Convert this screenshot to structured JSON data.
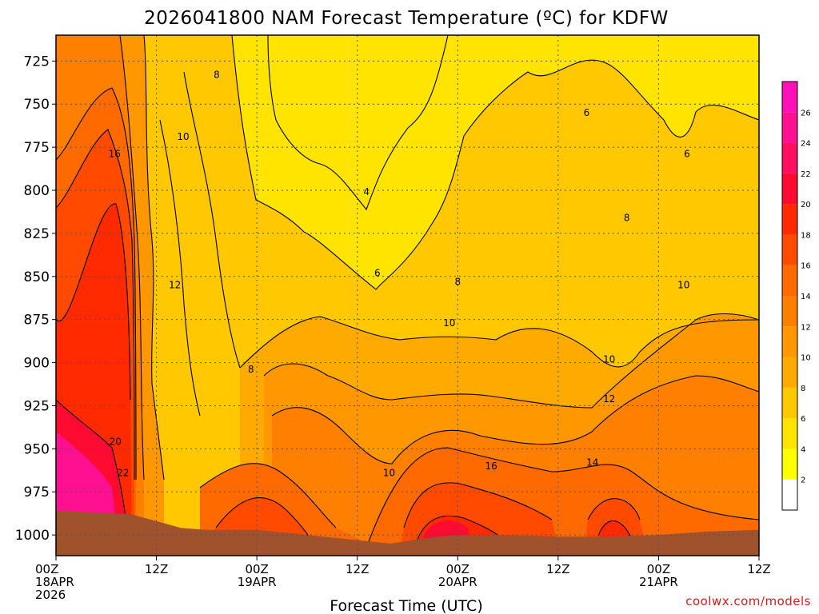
{
  "chart_data": {
    "type": "heatmap",
    "title": "2026041800 NAM Forecast Temperature (ºC) for KDFW",
    "xlabel": "Forecast Time (UTC)",
    "ylabel": "",
    "x_ticks": [
      {
        "t": 0,
        "line1": "00Z",
        "line2": "18APR",
        "line3": "2026"
      },
      {
        "t": 12,
        "line1": "12Z",
        "line2": "",
        "line3": ""
      },
      {
        "t": 24,
        "line1": "00Z",
        "line2": "19APR",
        "line3": ""
      },
      {
        "t": 36,
        "line1": "12Z",
        "line2": "",
        "line3": ""
      },
      {
        "t": 48,
        "line1": "00Z",
        "line2": "20APR",
        "line3": ""
      },
      {
        "t": 60,
        "line1": "12Z",
        "line2": "",
        "line3": ""
      },
      {
        "t": 72,
        "line1": "00Z",
        "line2": "21APR",
        "line3": ""
      },
      {
        "t": 84,
        "line1": "12Z",
        "line2": "",
        "line3": ""
      }
    ],
    "xlim": [
      0,
      84
    ],
    "y_ticks": [
      725,
      750,
      775,
      800,
      825,
      850,
      875,
      900,
      925,
      950,
      975,
      1000
    ],
    "ylim": [
      1012,
      710
    ],
    "colorbar": {
      "levels": [
        2,
        4,
        6,
        8,
        10,
        12,
        14,
        16,
        18,
        20,
        22,
        24,
        26
      ],
      "colors": [
        "#ffffff",
        "#ffff00",
        "#ffe400",
        "#ffc800",
        "#ffaa00",
        "#ff9800",
        "#ff8000",
        "#ff6a00",
        "#ff4a00",
        "#ff2a00",
        "#ff0a30",
        "#ff0f60",
        "#ff1090",
        "#ff10b8"
      ]
    },
    "contour_labels": [
      {
        "t": 19.2,
        "p": 733,
        "text": "8"
      },
      {
        "t": 15.2,
        "p": 769,
        "text": "10"
      },
      {
        "t": 7.0,
        "p": 779,
        "text": "16"
      },
      {
        "t": 14.2,
        "p": 855,
        "text": "12"
      },
      {
        "t": 23.3,
        "p": 904,
        "text": "8"
      },
      {
        "t": 7.1,
        "p": 946,
        "text": "20"
      },
      {
        "t": 8.0,
        "p": 964,
        "text": "22"
      },
      {
        "t": 37.1,
        "p": 801,
        "text": "4"
      },
      {
        "t": 38.4,
        "p": 848,
        "text": "6"
      },
      {
        "t": 48.0,
        "p": 853,
        "text": "8"
      },
      {
        "t": 47.0,
        "p": 877,
        "text": "10"
      },
      {
        "t": 39.8,
        "p": 964,
        "text": "10"
      },
      {
        "t": 52.0,
        "p": 960,
        "text": "16"
      },
      {
        "t": 63.4,
        "p": 755,
        "text": "6"
      },
      {
        "t": 75.4,
        "p": 779,
        "text": "6"
      },
      {
        "t": 68.2,
        "p": 816,
        "text": "8"
      },
      {
        "t": 75.0,
        "p": 855,
        "text": "10"
      },
      {
        "t": 66.1,
        "p": 898,
        "text": "10"
      },
      {
        "t": 66.1,
        "p": 921,
        "text": "12"
      },
      {
        "t": 64.1,
        "p": 958,
        "text": "14"
      }
    ],
    "notes": {
      "ground_color": "#a0522d",
      "surface_pressure": [
        [
          0,
          986
        ],
        [
          9,
          988
        ],
        [
          12,
          992
        ],
        [
          15,
          996
        ],
        [
          18,
          997
        ],
        [
          24,
          997
        ],
        [
          30,
          1000
        ],
        [
          36,
          1003
        ],
        [
          40,
          1005
        ],
        [
          44,
          1002
        ],
        [
          48,
          1000
        ],
        [
          54,
          1000
        ],
        [
          60,
          1001
        ],
        [
          66,
          1001
        ],
        [
          72,
          1000
        ],
        [
          78,
          998
        ],
        [
          84,
          997
        ]
      ]
    }
  },
  "credit": "coolwx.com/models"
}
